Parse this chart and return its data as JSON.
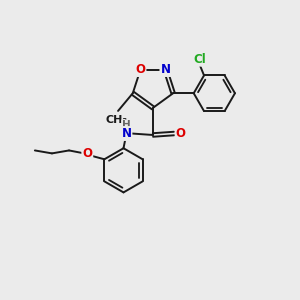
{
  "bg_color": "#ebebeb",
  "bond_color": "#1a1a1a",
  "bond_width": 1.4,
  "atom_colors": {
    "O": "#dd0000",
    "N": "#0000cc",
    "Cl": "#22aa22",
    "C": "#1a1a1a",
    "H": "#666666"
  },
  "figsize": [
    3.0,
    3.0
  ],
  "dpi": 100
}
